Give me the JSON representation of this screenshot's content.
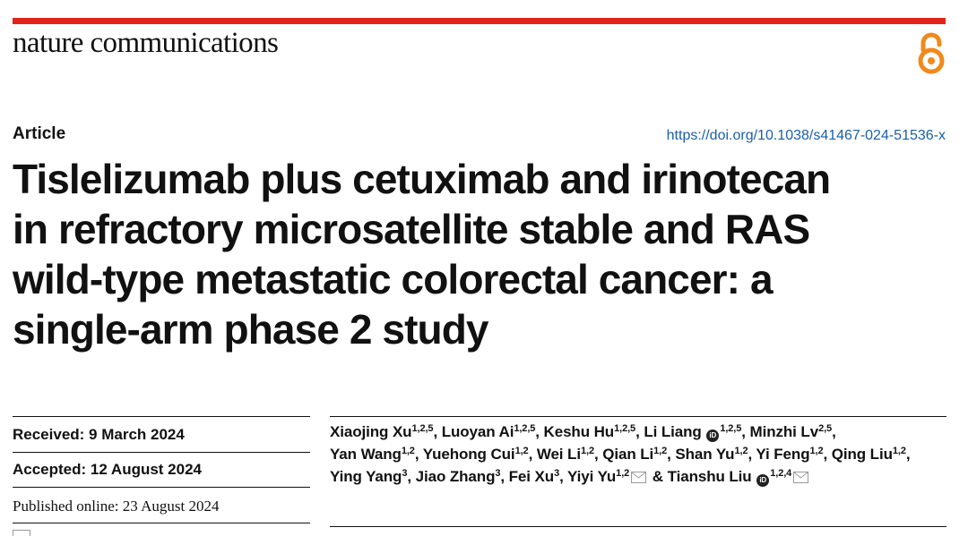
{
  "journal": {
    "name": "nature communications"
  },
  "icons": {
    "open_access": "open-access-lock-icon",
    "orcid": "orcid-icon",
    "mail": "mail-envelope-icon",
    "accent": "#e2241b",
    "oa_color": "#f08a1c"
  },
  "header": {
    "article_type": "Article",
    "doi": "https://doi.org/10.1038/s41467-024-51536-x"
  },
  "title_lines": [
    "Tislelizumab plus cetuximab and irinotecan",
    "in refractory microsatellite stable and RAS",
    "wild-type metastatic colorectal cancer: a",
    "single-arm phase 2 study"
  ],
  "dates": {
    "received": "Received: 9 March 2024",
    "accepted": "Accepted: 12 August 2024",
    "published": "Published online: 23 August 2024"
  },
  "authors": [
    {
      "name": "Xiaojing Xu",
      "sup": "1,2,5",
      "sep": ", "
    },
    {
      "name": "Luoyan Ai",
      "sup": "1,2,5",
      "sep": ", "
    },
    {
      "name": "Keshu Hu",
      "sup": "1,2,5",
      "sep": ", "
    },
    {
      "name": "Li Liang",
      "sup": "1,2,5",
      "sep": ", "
    },
    {
      "name": "Minzhi Lv",
      "sup": "2,5",
      "sep": ", "
    },
    {
      "name": "Yan Wang",
      "sup": "1,2",
      "sep": ", "
    },
    {
      "name": "Yuehong Cui",
      "sup": "1,2",
      "sep": ", "
    },
    {
      "name": "Wei Li",
      "sup": "1,2",
      "sep": ", "
    },
    {
      "name": "Qian Li",
      "sup": "1,2",
      "sep": ", "
    },
    {
      "name": "Shan Yu",
      "sup": "1,2",
      "sep": ", "
    },
    {
      "name": "Yi Feng",
      "sup": "1,2",
      "sep": ", "
    },
    {
      "name": "Qing Liu",
      "sup": "1,2",
      "sep": ", "
    },
    {
      "name": "Ying Yang",
      "sup": "3",
      "sep": ", "
    },
    {
      "name": "Jiao Zhang",
      "sup": "3",
      "sep": ", "
    },
    {
      "name": "Fei Xu",
      "sup": "3",
      "sep": ", "
    },
    {
      "name": "Yiyi Yu",
      "sup": "1,2",
      "sep": " & "
    },
    {
      "name": "Tianshu Liu",
      "sup": "1,2,4",
      "sep": ""
    }
  ]
}
